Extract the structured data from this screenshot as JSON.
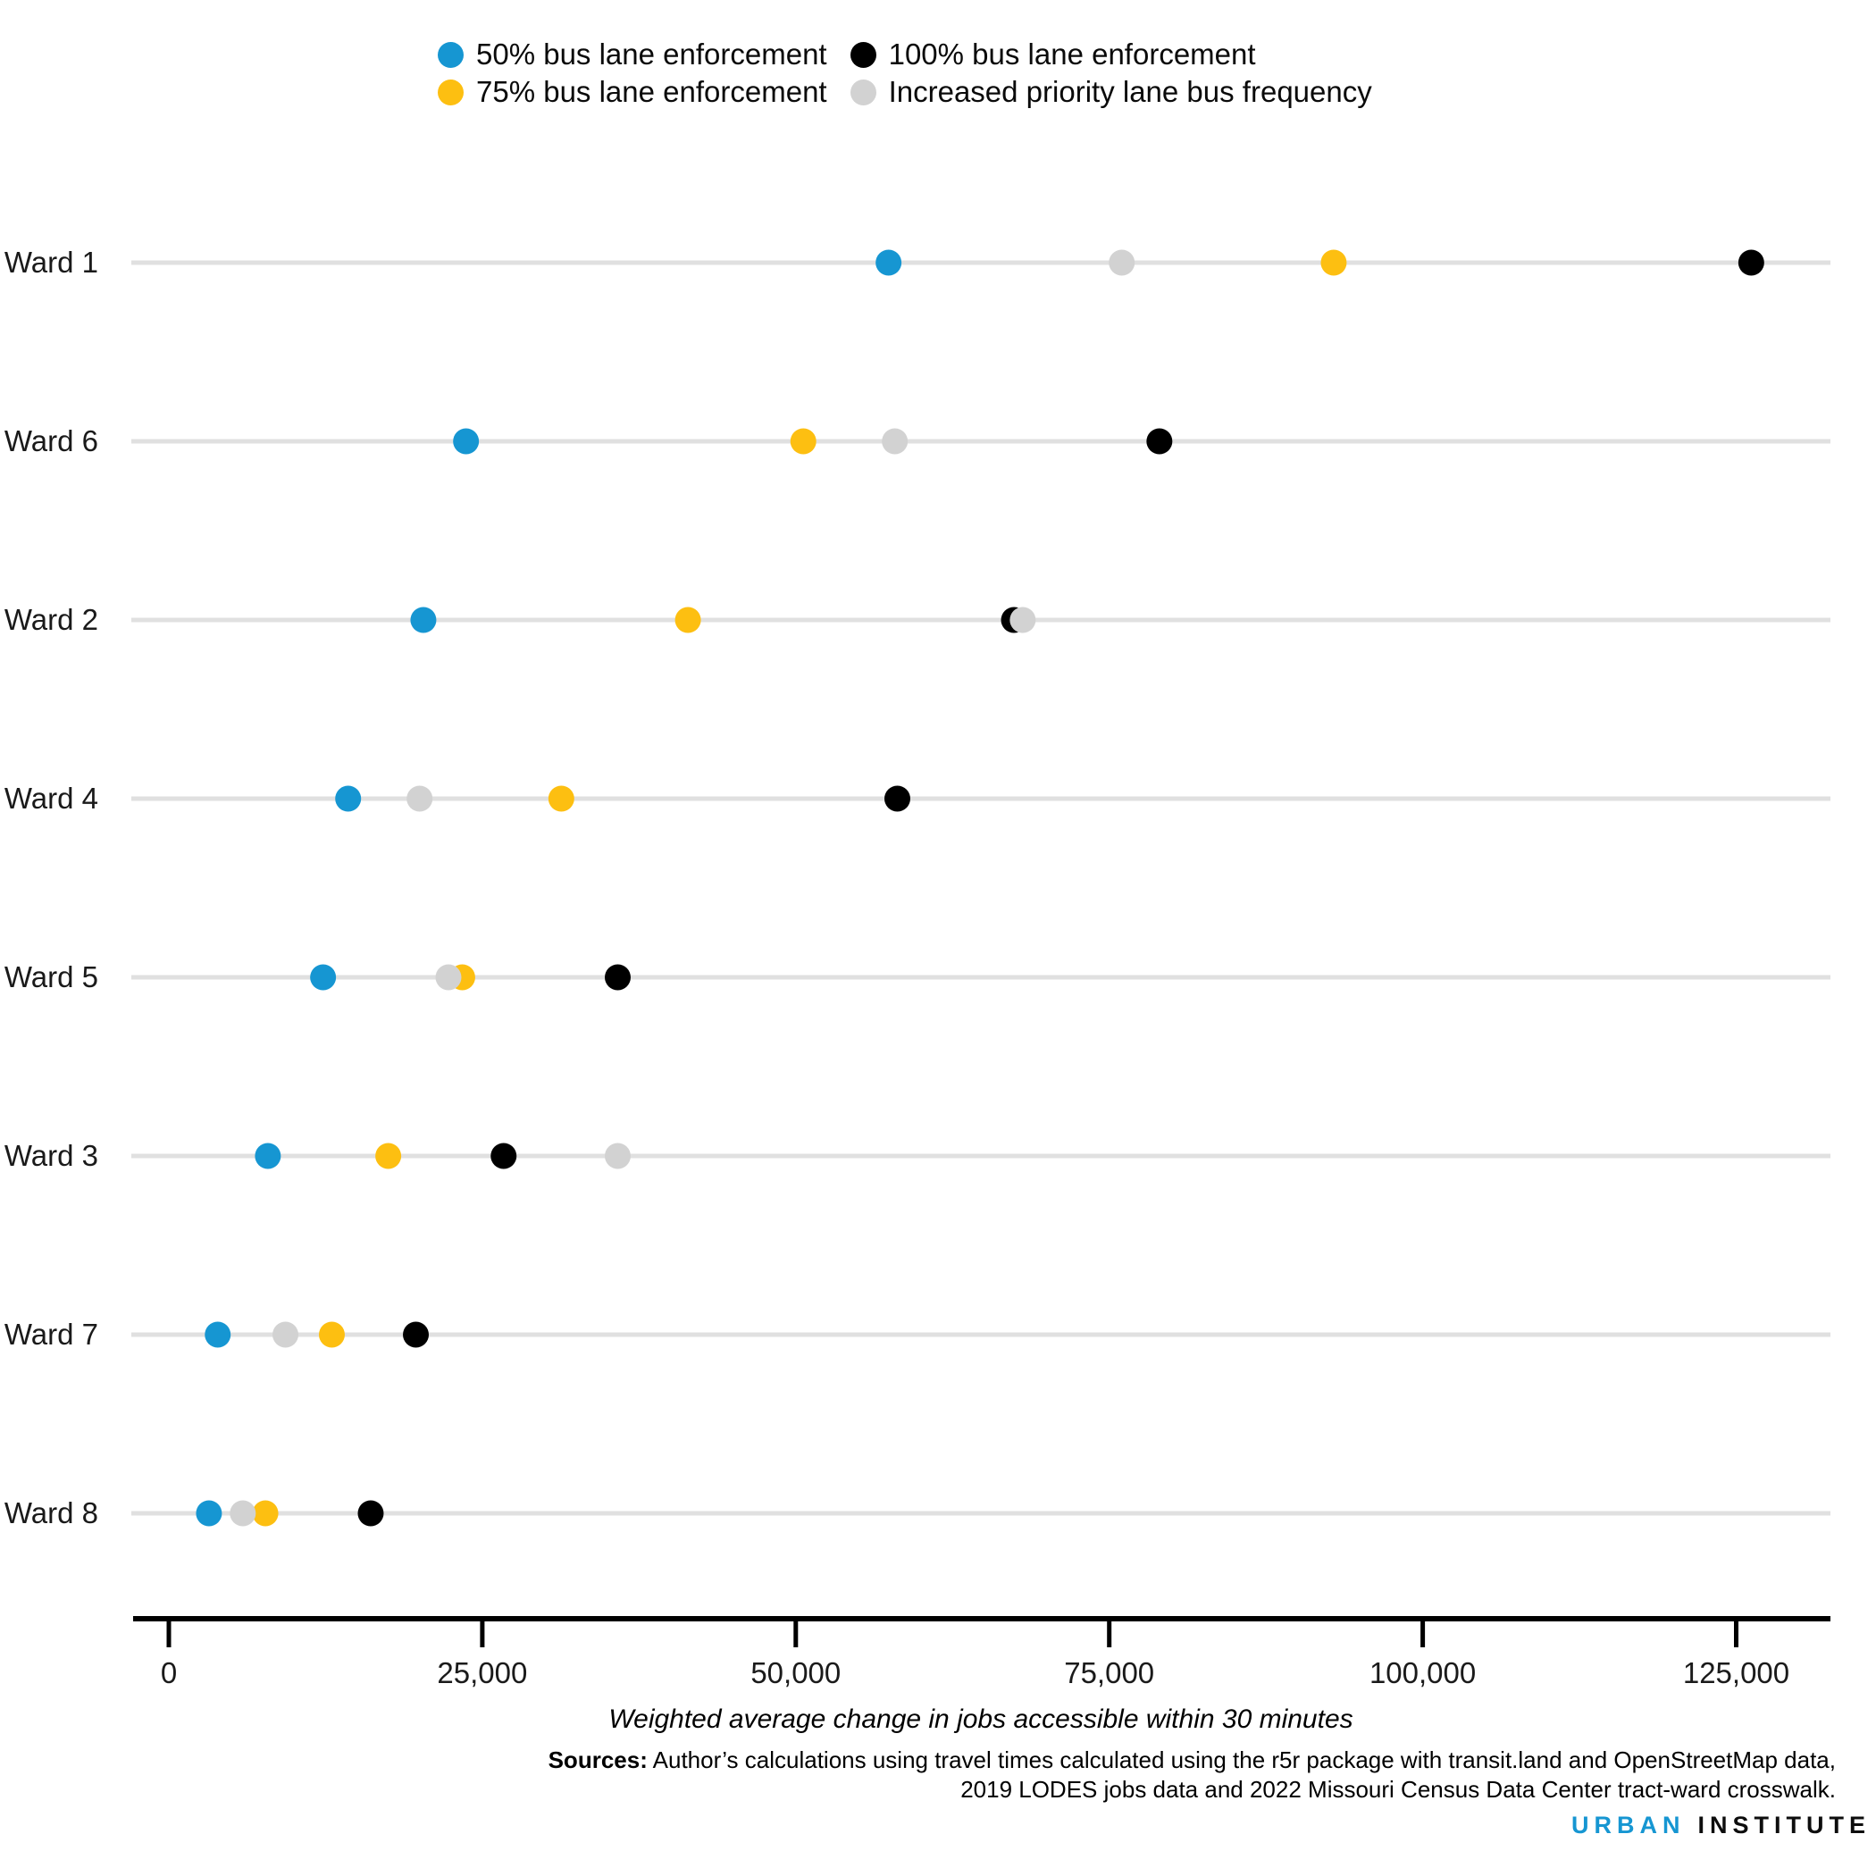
{
  "legend": {
    "items": [
      {
        "label": "50% bus lane enforcement",
        "color": "#1696d2"
      },
      {
        "label": "75% bus lane enforcement",
        "color": "#fdbf11"
      },
      {
        "label": "100% bus lane enforcement",
        "color": "#000000"
      },
      {
        "label": "Increased priority lane bus frequency",
        "color": "#d2d2d2"
      }
    ]
  },
  "chart_data": {
    "type": "scatter",
    "subtype": "dot-plot",
    "categories": [
      "Ward 1",
      "Ward 6",
      "Ward 2",
      "Ward 4",
      "Ward 5",
      "Ward 3",
      "Ward 7",
      "Ward 8"
    ],
    "series": [
      {
        "name": "50% bus lane enforcement",
        "color": "#1696d2",
        "values": [
          57400,
          23700,
          20300,
          14300,
          12300,
          7900,
          3900,
          3200
        ]
      },
      {
        "name": "75% bus lane enforcement",
        "color": "#fdbf11",
        "values": [
          92900,
          50600,
          41400,
          31300,
          23400,
          17500,
          13000,
          7700
        ]
      },
      {
        "name": "100% bus lane enforcement",
        "color": "#000000",
        "values": [
          126200,
          79000,
          67400,
          58100,
          35800,
          26700,
          19700,
          16100
        ]
      },
      {
        "name": "Increased priority lane bus frequency",
        "color": "#d2d2d2",
        "values": [
          76000,
          57900,
          68100,
          20000,
          22300,
          35800,
          9300,
          5900
        ]
      }
    ],
    "xlabel": "Weighted average change in jobs accessible within 30 minutes",
    "ylabel": "",
    "xlim": [
      0,
      132000
    ],
    "xticks": [
      0,
      25000,
      50000,
      75000,
      100000,
      125000
    ],
    "xtick_labels": [
      "0",
      "25,000",
      "50,000",
      "75,000",
      "100,000",
      "125,000"
    ],
    "legend_position": "top",
    "grid": "horizontal-row-lines",
    "row_line_color": "#e0e0e0",
    "axis_color": "#000000"
  },
  "footer": {
    "sources_label": "Sources:",
    "sources_line1": "Author’s calculations using travel times calculated using the r5r package with transit.land and OpenStreetMap data,",
    "sources_line2": "2019 LODES jobs data and 2022 Missouri Census Data Center tract-ward crosswalk.",
    "logo_part1": "URBAN",
    "logo_part2": "INSTITUTE"
  }
}
